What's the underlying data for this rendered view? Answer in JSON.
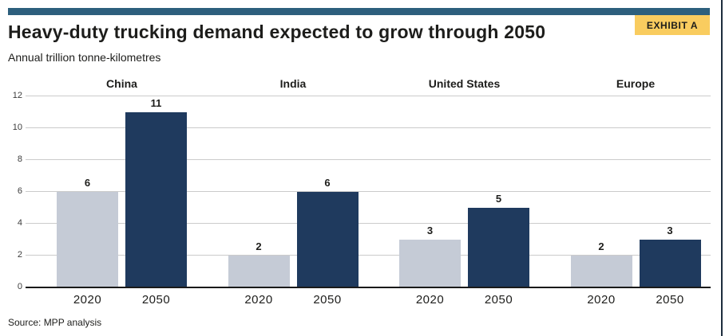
{
  "page": {
    "exhibit_label": "EXHIBIT A",
    "title": "Heavy-duty trucking demand expected to grow through 2050",
    "subtitle": "Annual trillion tonne-kilometres",
    "source": "Source: MPP analysis"
  },
  "colors": {
    "top_accent_bar": "#2d5f7d",
    "badge_bg": "#f9cc5f",
    "bar_2020": "#c5cbd6",
    "bar_2050": "#1f3a5e",
    "gridline": "#cbcbcb",
    "axis_line": "#1a1a1a",
    "frame_border": "#1d2c3d"
  },
  "chart_data": {
    "type": "bar",
    "title": "Heavy-duty trucking demand expected to grow through 2050",
    "ylabel": "Annual trillion tonne-kilometres",
    "groups": [
      "China",
      "India",
      "United States",
      "Europe"
    ],
    "categories": [
      "2020",
      "2050"
    ],
    "series": [
      {
        "name": "2020",
        "values": [
          6,
          2,
          3,
          2
        ]
      },
      {
        "name": "2050",
        "values": [
          11,
          6,
          5,
          3
        ]
      }
    ],
    "ylim": [
      0,
      12
    ],
    "yticks": [
      0,
      2,
      4,
      6,
      8,
      10,
      12
    ],
    "grid": true,
    "value_labels": true,
    "legend_position": "none"
  }
}
